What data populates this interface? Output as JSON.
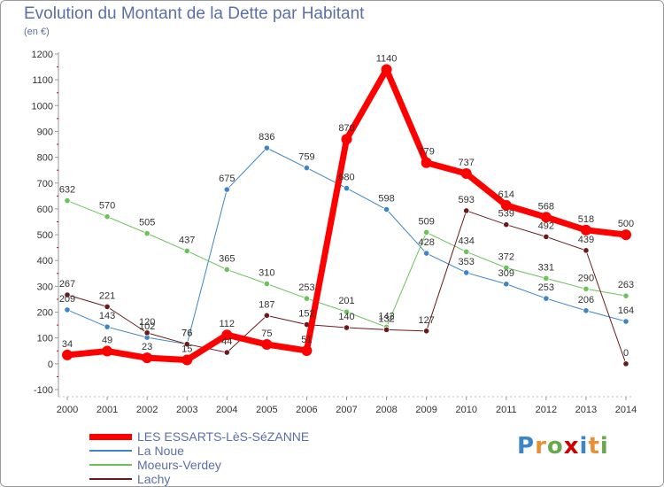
{
  "header": {
    "title": "Evolution du Montant de la Dette par Habitant",
    "subtitle": "(en €)"
  },
  "logo": {
    "letters": [
      "P",
      "r",
      "o",
      "x",
      "i",
      "t",
      "i"
    ],
    "colors": [
      "#3d85c6",
      "#e69138",
      "#6aa84f",
      "#cc0000",
      "#3d85c6",
      "#e69138",
      "#6aa84f"
    ]
  },
  "chart_data": {
    "type": "line",
    "title": "Evolution du Montant de la Dette par Habitant",
    "subtitle": "(en €)",
    "x": [
      "2000",
      "2001",
      "2002",
      "2003",
      "2004",
      "2005",
      "2006",
      "2007",
      "2008",
      "2009",
      "2010",
      "2011",
      "2012",
      "2013",
      "2014"
    ],
    "ylim": [
      -100,
      1200
    ],
    "yticks": [
      -100,
      0,
      100,
      200,
      300,
      400,
      500,
      600,
      700,
      800,
      900,
      1000,
      1100,
      1200
    ],
    "grid": false,
    "legend_position": "bottom-left",
    "series": [
      {
        "name": "LES ESSARTS-LèS-SéZANNE",
        "color": "#ff0000",
        "width": 7,
        "values": [
          34,
          49,
          23,
          15,
          112,
          75,
          51,
          870,
          1140,
          779,
          737,
          614,
          568,
          518,
          500
        ],
        "labels": [
          "34",
          "49",
          "23",
          "15",
          "112",
          "75",
          "51",
          "870",
          "1140",
          "779",
          "737",
          "614",
          "568",
          "518",
          "500"
        ]
      },
      {
        "name": "La Noue",
        "color": "#3d85c6",
        "width": 1,
        "values": [
          209,
          143,
          102,
          76,
          675,
          836,
          759,
          680,
          598,
          428,
          353,
          309,
          253,
          206,
          164
        ],
        "labels": [
          "209",
          "143",
          "102",
          "76",
          "675",
          "836",
          "759",
          "680",
          "598",
          "428",
          "353",
          "309",
          "253",
          "206",
          "164"
        ]
      },
      {
        "name": "Moeurs-Verdey",
        "color": "#6ac259",
        "width": 1,
        "values": [
          632,
          570,
          505,
          437,
          365,
          310,
          253,
          201,
          142,
          509,
          434,
          372,
          331,
          290,
          263
        ],
        "labels": [
          "632",
          "570",
          "505",
          "437",
          "365",
          "310",
          "253",
          "201",
          "142",
          "509",
          "434",
          "372",
          "331",
          "290",
          "263"
        ]
      },
      {
        "name": "Lachy",
        "color": "#6b1a1a",
        "width": 1,
        "values": [
          267,
          221,
          120,
          76,
          44,
          187,
          152,
          140,
          132,
          127,
          593,
          539,
          492,
          439,
          0
        ],
        "labels": [
          "267",
          "221",
          "120",
          "76",
          "44",
          "187",
          "152",
          "140",
          "132",
          "127",
          "593",
          "539",
          "492",
          "439",
          "0"
        ]
      }
    ]
  }
}
